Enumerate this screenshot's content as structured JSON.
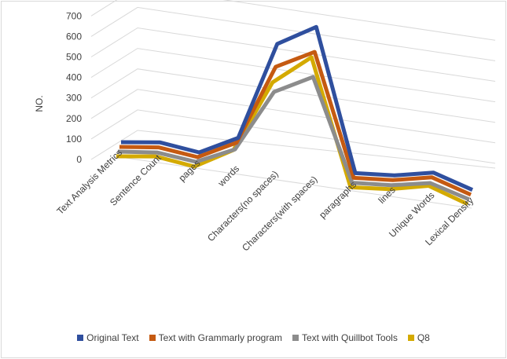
{
  "chart_data": {
    "type": "line",
    "view": "3d",
    "ylabel": "NO.",
    "ylim": [
      0,
      700
    ],
    "yticks": [
      0,
      100,
      200,
      300,
      400,
      500,
      600,
      700
    ],
    "grid": true,
    "legend_position": "bottom",
    "categories": [
      "Text Analysis Metrics",
      "Sentence Count",
      "pages",
      "words",
      "Characters(no spaces)",
      "Characters(with spaces)",
      "paragraphs",
      "lines",
      "Unique Words",
      "Lexical Density"
    ],
    "series": [
      {
        "name": "Original Text",
        "color": "#2f4f9e",
        "values": [
          0,
          25,
          2,
          100,
          590,
          720,
          5,
          20,
          60,
          1
        ]
      },
      {
        "name": "Text with Grammarly program",
        "color": "#c55a11",
        "values": [
          0,
          24,
          2,
          100,
          500,
          600,
          5,
          20,
          60,
          0.5
        ]
      },
      {
        "name": "Text with Quillbot Tools",
        "color": "#8c8c8c",
        "values": [
          0,
          22,
          2,
          90,
          400,
          500,
          4,
          18,
          55,
          0.5
        ]
      },
      {
        "name": "Q8",
        "color": "#d4aa00",
        "values": [
          0,
          26,
          2,
          110,
          470,
          620,
          5,
          22,
          65,
          0.5
        ]
      }
    ]
  }
}
